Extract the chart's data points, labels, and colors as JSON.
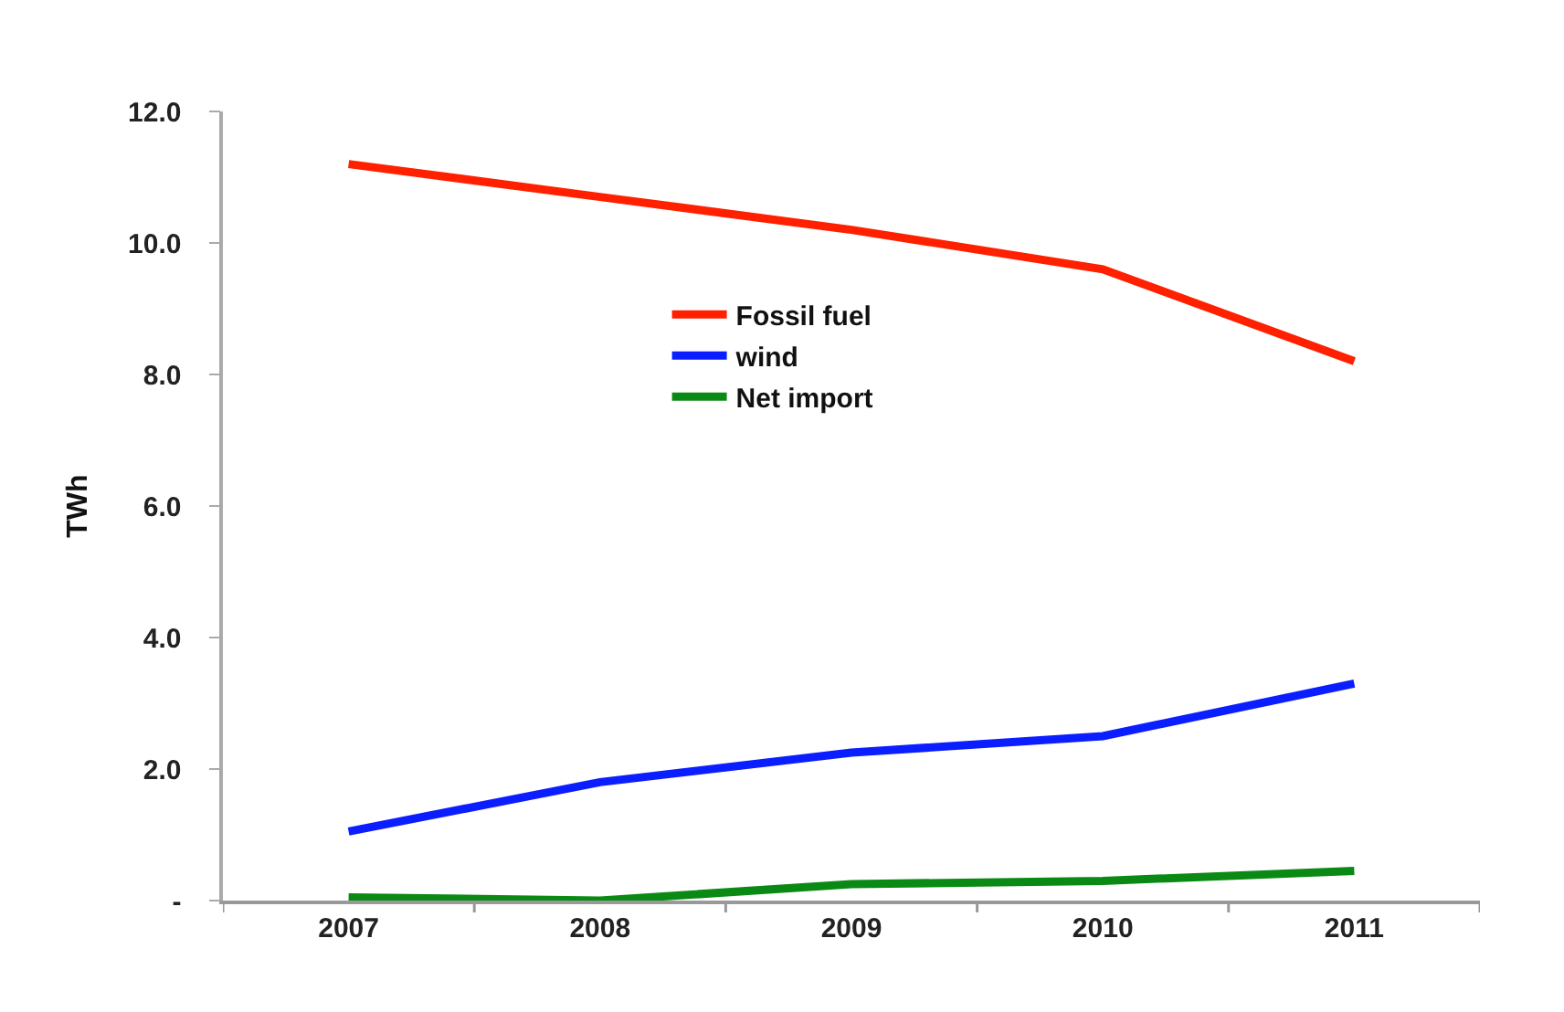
{
  "chart_data": {
    "type": "line",
    "ylabel": "TWh",
    "categories": [
      "2007",
      "2008",
      "2009",
      "2010",
      "2011"
    ],
    "series": [
      {
        "name": "Fossil fuel",
        "color": "#ff2000",
        "values": [
          11.2,
          10.7,
          10.2,
          9.6,
          8.2
        ]
      },
      {
        "name": "wind",
        "color": "#0a1eff",
        "values": [
          1.05,
          1.8,
          2.25,
          2.5,
          3.3
        ]
      },
      {
        "name": "Net import",
        "color": "#0a8a14",
        "values": [
          0.05,
          0.0,
          0.25,
          0.3,
          0.45
        ]
      }
    ],
    "ylim": [
      0,
      12
    ],
    "yticks": [
      {
        "value": 0,
        "label": "-"
      },
      {
        "value": 2,
        "label": "2.0"
      },
      {
        "value": 4,
        "label": "4.0"
      },
      {
        "value": 6,
        "label": "6.0"
      },
      {
        "value": 8,
        "label": "8.0"
      },
      {
        "value": 10,
        "label": "10.0"
      },
      {
        "value": 12,
        "label": "12.0"
      }
    ],
    "grid": false,
    "legend": "center",
    "marker": "none",
    "line_style": "solid"
  }
}
